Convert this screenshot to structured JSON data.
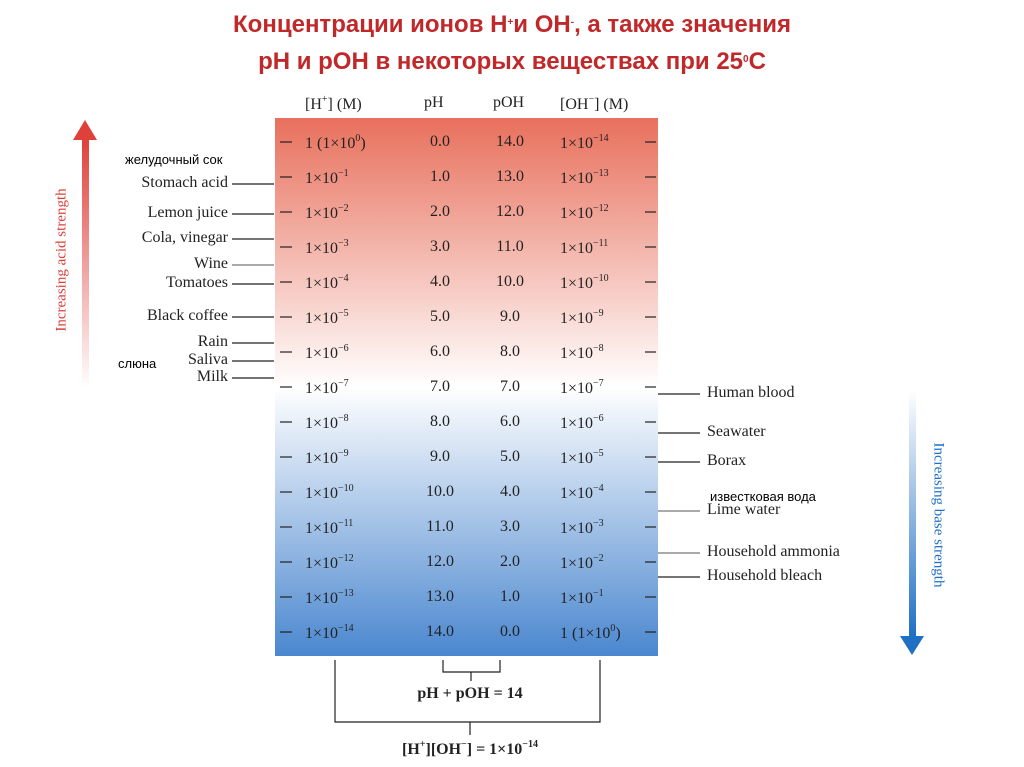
{
  "title": {
    "line1": [
      "Концентрации ионов H",
      "+",
      "и OH",
      "-",
      ", а также значения"
    ],
    "line2": [
      "pH и pOH в некоторых веществах при 25",
      "0",
      "С"
    ]
  },
  "table": {
    "headers": [
      [
        "[H",
        "+",
        "] (M)"
      ],
      [
        "pH"
      ],
      [
        "pOH"
      ],
      [
        "[OH",
        "−",
        "] (M)"
      ]
    ],
    "rows": [
      {
        "h": [
          "1 (1×10",
          "0",
          ")"
        ],
        "ph": "0.0",
        "poh": "14.0",
        "oh": [
          "1×10",
          "−14"
        ]
      },
      {
        "h": [
          "1×10",
          "−1"
        ],
        "ph": "1.0",
        "poh": "13.0",
        "oh": [
          "1×10",
          "−13"
        ]
      },
      {
        "h": [
          "1×10",
          "−2"
        ],
        "ph": "2.0",
        "poh": "12.0",
        "oh": [
          "1×10",
          "−12"
        ]
      },
      {
        "h": [
          "1×10",
          "−3"
        ],
        "ph": "3.0",
        "poh": "11.0",
        "oh": [
          "1×10",
          "−11"
        ]
      },
      {
        "h": [
          "1×10",
          "−4"
        ],
        "ph": "4.0",
        "poh": "10.0",
        "oh": [
          "1×10",
          "−10"
        ]
      },
      {
        "h": [
          "1×10",
          "−5"
        ],
        "ph": "5.0",
        "poh": "9.0",
        "oh": [
          "1×10",
          "−9"
        ]
      },
      {
        "h": [
          "1×10",
          "−6"
        ],
        "ph": "6.0",
        "poh": "8.0",
        "oh": [
          "1×10",
          "−8"
        ]
      },
      {
        "h": [
          "1×10",
          "−7"
        ],
        "ph": "7.0",
        "poh": "7.0",
        "oh": [
          "1×10",
          "−7"
        ]
      },
      {
        "h": [
          "1×10",
          "−8"
        ],
        "ph": "8.0",
        "poh": "6.0",
        "oh": [
          "1×10",
          "−6"
        ]
      },
      {
        "h": [
          "1×10",
          "−9"
        ],
        "ph": "9.0",
        "poh": "5.0",
        "oh": [
          "1×10",
          "−5"
        ]
      },
      {
        "h": [
          "1×10",
          "−10"
        ],
        "ph": "10.0",
        "poh": "4.0",
        "oh": [
          "1×10",
          "−4"
        ]
      },
      {
        "h": [
          "1×10",
          "−11"
        ],
        "ph": "11.0",
        "poh": "3.0",
        "oh": [
          "1×10",
          "−3"
        ]
      },
      {
        "h": [
          "1×10",
          "−12"
        ],
        "ph": "12.0",
        "poh": "2.0",
        "oh": [
          "1×10",
          "−2"
        ]
      },
      {
        "h": [
          "1×10",
          "−13"
        ],
        "ph": "13.0",
        "poh": "1.0",
        "oh": [
          "1×10",
          "−1"
        ]
      },
      {
        "h": [
          "1×10",
          "−14"
        ],
        "ph": "14.0",
        "poh": "0.0",
        "oh": [
          "1 (1×10",
          "0",
          ")"
        ]
      }
    ]
  },
  "acid_labels": [
    "Stomach acid",
    "Lemon juice",
    "Cola, vinegar",
    "Wine",
    "Tomatoes",
    "Black coffee",
    "Rain",
    "Saliva",
    "Milk"
  ],
  "base_labels": [
    "Human blood",
    "Seawater",
    "Borax",
    "Lime water",
    "Household ammonia",
    "Household bleach"
  ],
  "russian_labels": [
    "желудочный сок",
    "слюна",
    "известковая вода"
  ],
  "arrows": {
    "acid": "Increasing acid strength",
    "base": "Increasing base strength"
  },
  "formulas": {
    "sum": "pH + pOH = 14",
    "product": [
      "[H",
      "+",
      "][OH",
      "−",
      "] = 1×10",
      "−14"
    ]
  }
}
